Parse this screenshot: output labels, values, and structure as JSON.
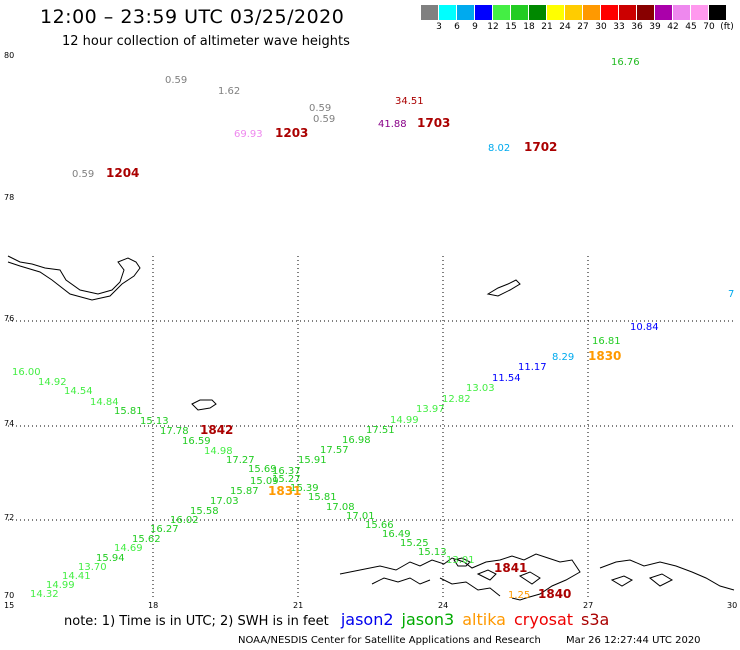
{
  "title": "12:00 – 23:59 UTC 03/25/2020",
  "subtitle": "12 hour collection of altimeter wave heights",
  "colorbar": {
    "colors": [
      "#808080",
      "#00ffff",
      "#00aaee",
      "#0000ff",
      "#44ee44",
      "#22cc22",
      "#008800",
      "#ffff00",
      "#ffcc00",
      "#ff9900",
      "#ff0000",
      "#cc0000",
      "#880000",
      "#aa00aa",
      "#ee88ee",
      "#ff99ee",
      "#000000"
    ],
    "labels": [
      "3",
      "6",
      "9",
      "12",
      "15",
      "18",
      "21",
      "24",
      "27",
      "30",
      "33",
      "36",
      "39",
      "42",
      "45",
      "70",
      "(ft)"
    ]
  },
  "lat_ticks": [
    "80",
    "78",
    "76",
    "74",
    "72",
    "70"
  ],
  "lon_ticks": [
    "15",
    "18",
    "21",
    "24",
    "27",
    "30"
  ],
  "map_labels": [
    {
      "t": "0.59",
      "c": "#808080"
    },
    {
      "t": "1.62",
      "c": "#808080"
    },
    {
      "t": "0.59",
      "c": "#808080"
    },
    {
      "t": "0.59",
      "c": "#808080"
    },
    {
      "t": "34.51",
      "c": "#aa0000"
    },
    {
      "t": "16.76",
      "c": "#22bb22"
    },
    {
      "t": "41.88",
      "c": "#880088"
    },
    {
      "t": "69.93",
      "c": "#ee88ee"
    },
    {
      "t": "8.02",
      "c": "#00aaee"
    },
    {
      "t": "0.59",
      "c": "#808080"
    },
    {
      "t": "1.25",
      "c": "#ff9900"
    },
    {
      "t": "16.00",
      "c": "#44ee44"
    },
    {
      "t": "14.92",
      "c": "#44ee44"
    },
    {
      "t": "14.54",
      "c": "#44ee44"
    },
    {
      "t": "14.84",
      "c": "#44ee44"
    },
    {
      "t": "15.81",
      "c": "#22cc22"
    },
    {
      "t": "15.13",
      "c": "#22cc22"
    },
    {
      "t": "17.78",
      "c": "#22cc22"
    },
    {
      "t": "16.59",
      "c": "#22cc22"
    },
    {
      "t": "14.98",
      "c": "#44ee44"
    },
    {
      "t": "17.27",
      "c": "#22cc22"
    },
    {
      "t": "15.69",
      "c": "#22cc22"
    },
    {
      "t": "16.37",
      "c": "#22cc22"
    },
    {
      "t": "15.09",
      "c": "#22cc22"
    },
    {
      "t": "15.27",
      "c": "#22cc22"
    },
    {
      "t": "16.39",
      "c": "#22cc22"
    },
    {
      "t": "15.87",
      "c": "#22cc22"
    },
    {
      "t": "15.81",
      "c": "#22cc22"
    },
    {
      "t": "17.03",
      "c": "#22cc22"
    },
    {
      "t": "17.08",
      "c": "#22cc22"
    },
    {
      "t": "15.58",
      "c": "#22cc22"
    },
    {
      "t": "17.01",
      "c": "#22cc22"
    },
    {
      "t": "16.02",
      "c": "#22cc22"
    },
    {
      "t": "15.66",
      "c": "#22cc22"
    },
    {
      "t": "16.27",
      "c": "#22cc22"
    },
    {
      "t": "16.49",
      "c": "#22cc22"
    },
    {
      "t": "15.62",
      "c": "#22cc22"
    },
    {
      "t": "15.25",
      "c": "#22cc22"
    },
    {
      "t": "14.69",
      "c": "#44ee44"
    },
    {
      "t": "15.13",
      "c": "#22cc22"
    },
    {
      "t": "15.94",
      "c": "#22cc22"
    },
    {
      "t": "13.70",
      "c": "#44ee44"
    },
    {
      "t": "14.41",
      "c": "#44ee44"
    },
    {
      "t": "14.99",
      "c": "#44ee44"
    },
    {
      "t": "14.32",
      "c": "#44ee44"
    },
    {
      "t": "15.91",
      "c": "#22cc22"
    },
    {
      "t": "17.57",
      "c": "#22cc22"
    },
    {
      "t": "16.98",
      "c": "#22cc22"
    },
    {
      "t": "17.51",
      "c": "#22cc22"
    },
    {
      "t": "14.99",
      "c": "#44ee44"
    },
    {
      "t": "13.97",
      "c": "#44ee44"
    },
    {
      "t": "12.82",
      "c": "#44ee44"
    },
    {
      "t": "13.03",
      "c": "#44ee44"
    },
    {
      "t": "11.54",
      "c": "#0000ff"
    },
    {
      "t": "11.17",
      "c": "#0000ff"
    },
    {
      "t": "8.29",
      "c": "#00aaee"
    },
    {
      "t": "16.81",
      "c": "#22cc22"
    },
    {
      "t": "10.84",
      "c": "#0000ff"
    },
    {
      "t": "13.01",
      "c": "#44ee44"
    },
    {
      "t": "7",
      "c": "#00aaee"
    }
  ],
  "time_labels": [
    {
      "t": "1204",
      "c": "#aa0000"
    },
    {
      "t": "1203",
      "c": "#aa0000"
    },
    {
      "t": "1703",
      "c": "#aa0000"
    },
    {
      "t": "1702",
      "c": "#aa0000"
    },
    {
      "t": "1842",
      "c": "#aa0000"
    },
    {
      "t": "1831",
      "c": "#ff9900"
    },
    {
      "t": "1830",
      "c": "#ff9900"
    },
    {
      "t": "1841",
      "c": "#aa0000"
    },
    {
      "t": "1840",
      "c": "#aa0000"
    }
  ],
  "legend": {
    "note": "note: 1) Time is in UTC; 2) SWH is in feet",
    "satellites": [
      {
        "name": "jason2",
        "color": "#0000ee"
      },
      {
        "name": "jason3",
        "color": "#00aa00"
      },
      {
        "name": "altika",
        "color": "#ff9900"
      },
      {
        "name": "cryosat",
        "color": "#ee0000"
      },
      {
        "name": "s3a",
        "color": "#aa0000"
      }
    ]
  },
  "footer": {
    "credit": "NOAA/NESDIS Center for Satellite Applications and Research",
    "timestamp": "Mar 26 12:27:44 UTC 2020"
  }
}
